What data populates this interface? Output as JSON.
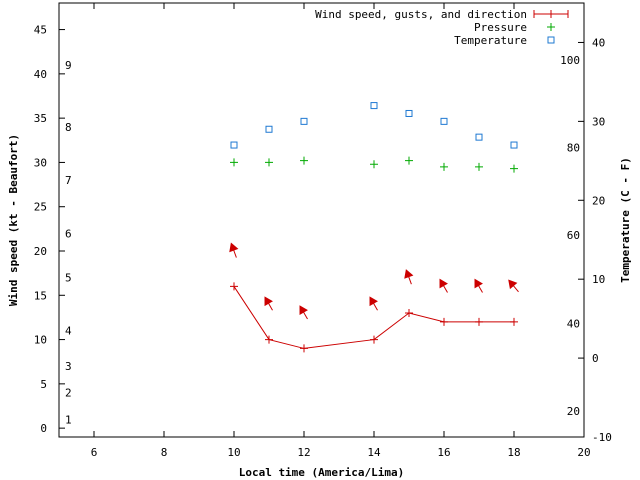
{
  "chart_data": {
    "type": "line",
    "xlabel": "Local time (America/Lima)",
    "ylabel": "Wind speed (kt - Beaufort)",
    "y2label": "Temperature (C - F)",
    "xlim": [
      5,
      20
    ],
    "ylim": [
      -1,
      48
    ],
    "y2lim": [
      -10,
      45
    ],
    "xticks": [
      6,
      8,
      10,
      12,
      14,
      16,
      18,
      20
    ],
    "yticks": [
      0,
      5,
      10,
      15,
      20,
      25,
      30,
      35,
      40,
      45
    ],
    "y2ticks": [
      -10,
      0,
      10,
      20,
      30,
      40
    ],
    "beaufort_labels": [
      {
        "label": "1",
        "y": 1
      },
      {
        "label": "2",
        "y": 4
      },
      {
        "label": "3",
        "y": 7
      },
      {
        "label": "4",
        "y": 11
      },
      {
        "label": "5",
        "y": 17
      },
      {
        "label": "6",
        "y": 22
      },
      {
        "label": "7",
        "y": 28
      },
      {
        "label": "8",
        "y": 34
      },
      {
        "label": "9",
        "y": 41
      }
    ],
    "fahrenheit_labels": [
      {
        "label": "20",
        "temp_c": -6.7
      },
      {
        "label": "40",
        "temp_c": 4.4
      },
      {
        "label": "60",
        "temp_c": 15.6
      },
      {
        "label": "80",
        "temp_c": 26.7
      },
      {
        "label": "100",
        "temp_c": 37.8
      }
    ],
    "legend_position": "top-right",
    "series": [
      {
        "name": "Wind speed, gusts, and direction",
        "kind": "wind",
        "color": "#cc0000",
        "x": [
          10,
          11,
          12,
          14,
          15,
          16,
          17,
          18
        ],
        "values": [
          16,
          10,
          9,
          10,
          13,
          12,
          12,
          12
        ],
        "direction_deg": [
          160,
          150,
          150,
          150,
          160,
          150,
          150,
          140
        ]
      },
      {
        "name": "Pressure",
        "kind": "pressure",
        "color": "#00aa00",
        "x": [
          10,
          11,
          12,
          14,
          15,
          16,
          17,
          18
        ],
        "values": [
          30.0,
          30.0,
          30.2,
          29.8,
          30.2,
          29.5,
          29.5,
          29.3
        ]
      },
      {
        "name": "Temperature",
        "kind": "temperature",
        "color": "#1e78d2",
        "axis": "y2",
        "x": [
          10,
          11,
          12,
          14,
          15,
          16,
          17,
          18
        ],
        "values": [
          27,
          29,
          30,
          32,
          31,
          30,
          28,
          27
        ]
      }
    ]
  }
}
